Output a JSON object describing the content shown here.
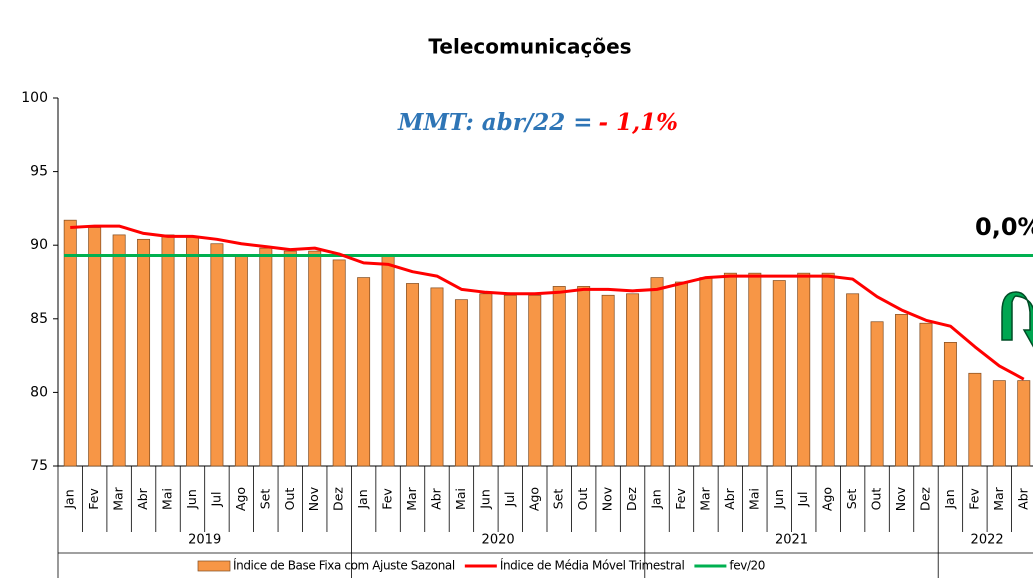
{
  "chart_data": {
    "type": "bar",
    "title": "Telecomunicações",
    "categories": [
      "Jan",
      "Fev",
      "Mar",
      "Abr",
      "Mai",
      "Jun",
      "Jul",
      "Ago",
      "Set",
      "Out",
      "Nov",
      "Dez",
      "Jan",
      "Fev",
      "Mar",
      "Abr",
      "Mai",
      "Jun",
      "Jul",
      "Ago",
      "Set",
      "Out",
      "Nov",
      "Dez",
      "Jan",
      "Fev",
      "Mar",
      "Abr",
      "Mai",
      "Jun",
      "Jul",
      "Ago",
      "Set",
      "Out",
      "Nov",
      "Dez",
      "Jan",
      "Fev",
      "Mar",
      "Abr"
    ],
    "year_labels": [
      "2019",
      "2020",
      "2021",
      "2022"
    ],
    "series": [
      {
        "name": "Índice de Base Fixa com Ajuste Sazonal",
        "type": "bar",
        "color": "#f79646",
        "values": [
          91.7,
          91.2,
          90.7,
          90.4,
          90.7,
          90.6,
          90.1,
          89.3,
          89.8,
          89.6,
          89.6,
          89.0,
          87.8,
          89.3,
          87.4,
          87.1,
          86.3,
          86.7,
          86.6,
          86.6,
          87.2,
          87.2,
          86.6,
          86.7,
          87.8,
          87.5,
          87.8,
          88.1,
          88.1,
          87.6,
          88.1,
          88.1,
          86.7,
          84.8,
          85.3,
          84.7,
          83.4,
          81.3,
          80.8,
          80.8
        ]
      },
      {
        "name": "Índice de Média Móvel Trimestral",
        "type": "line",
        "color": "#ff0000",
        "values": [
          91.2,
          91.3,
          91.3,
          90.8,
          90.6,
          90.6,
          90.4,
          90.1,
          89.9,
          89.7,
          89.8,
          89.4,
          88.8,
          88.7,
          88.2,
          87.9,
          87.0,
          86.8,
          86.7,
          86.7,
          86.8,
          87.0,
          87.0,
          86.9,
          87.0,
          87.4,
          87.8,
          87.9,
          87.9,
          87.9,
          87.9,
          87.9,
          87.7,
          86.5,
          85.6,
          84.9,
          84.5,
          83.1,
          81.8,
          80.9
        ]
      }
    ],
    "reference_line": {
      "name": "fev/20",
      "value": 89.3,
      "color": "#00b050"
    },
    "annotation_mmt": {
      "text": "MMT: abr/22 =",
      "value_text": "- 1,1%",
      "color": "#2e75b6",
      "value_color": "#ff0000"
    },
    "annotation_ref": {
      "text": "0,0%",
      "color": "#00b050"
    },
    "ylim": [
      75,
      100
    ],
    "yticks": [
      75,
      80,
      85,
      90,
      95,
      100
    ],
    "grid": false
  }
}
